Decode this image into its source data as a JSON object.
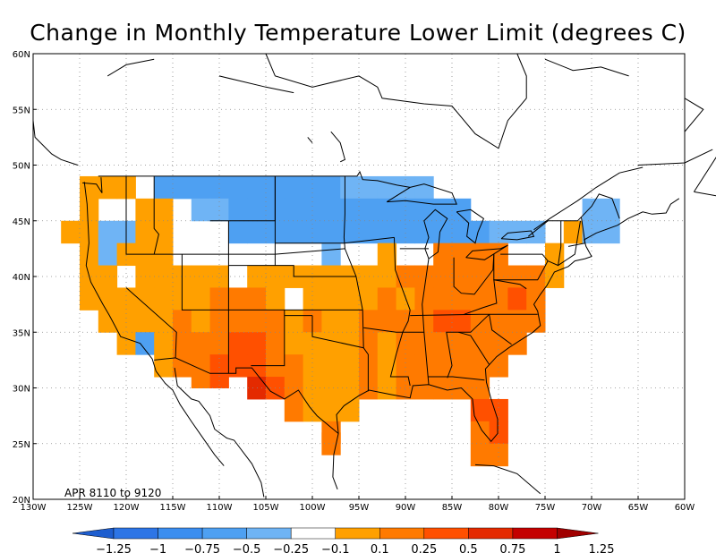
{
  "title": "Change in Monthly Temperature Lower Limit (degrees C)",
  "period_label": "APR 8110 to 9120",
  "lat_labels": [
    "60N",
    "55N",
    "50N",
    "45N",
    "40N",
    "35N",
    "30N",
    "25N",
    "20N"
  ],
  "lon_labels": [
    "130W",
    "125W",
    "120W",
    "115W",
    "110W",
    "105W",
    "100W",
    "95W",
    "90W",
    "85W",
    "80W",
    "75W",
    "70W",
    "65W",
    "60W"
  ],
  "colorbar": {
    "labels": [
      "-1.25",
      "-1",
      "-0.75",
      "-0.5",
      "-0.25",
      "-0.1",
      "0.1",
      "0.25",
      "0.5",
      "0.75",
      "1",
      "1.25"
    ],
    "colors": [
      "#1e5ecf",
      "#2d75e6",
      "#3b8ef0",
      "#4ea0f2",
      "#6fb4f5",
      "#ffffff",
      "#ffa000",
      "#ff7a00",
      "#ff5000",
      "#e42a00",
      "#c40000",
      "#a00000"
    ]
  },
  "map_data": {
    "lon_range": [
      -130,
      -60
    ],
    "lat_range": [
      20,
      60
    ],
    "cells": [
      {
        "lon": -124,
        "lat": 48,
        "level": "0.1"
      },
      {
        "lon": -122,
        "lat": 48,
        "level": "0.1"
      },
      {
        "lon": -120,
        "lat": 48,
        "level": "0.1"
      },
      {
        "lon": -116,
        "lat": 48,
        "level": "-0.5"
      },
      {
        "lon": -114,
        "lat": 48,
        "level": "-0.5"
      },
      {
        "lon": -112,
        "lat": 48,
        "level": "-0.5"
      },
      {
        "lon": -110,
        "lat": 48,
        "level": "-0.5"
      },
      {
        "lon": -108,
        "lat": 48,
        "level": "-0.5"
      },
      {
        "lon": -106,
        "lat": 48,
        "level": "-0.5"
      },
      {
        "lon": -104,
        "lat": 48,
        "level": "-0.5"
      },
      {
        "lon": -102,
        "lat": 48,
        "level": "-0.5"
      },
      {
        "lon": -100,
        "lat": 48,
        "level": "-0.5"
      },
      {
        "lon": -98,
        "lat": 48,
        "level": "-0.5"
      },
      {
        "lon": -96,
        "lat": 48,
        "level": "-0.25"
      },
      {
        "lon": -94,
        "lat": 48,
        "level": "-0.25"
      },
      {
        "lon": -92,
        "lat": 48,
        "level": "-0.25"
      },
      {
        "lon": -90,
        "lat": 48,
        "level": "-0.25"
      },
      {
        "lon": -88,
        "lat": 48,
        "level": "-0.25"
      },
      {
        "lon": -124,
        "lat": 46,
        "level": "0.1"
      },
      {
        "lon": -118,
        "lat": 46,
        "level": "0.1"
      },
      {
        "lon": -116,
        "lat": 46,
        "level": "0.1"
      },
      {
        "lon": -112,
        "lat": 46,
        "level": "-0.25"
      },
      {
        "lon": -110,
        "lat": 46,
        "level": "-0.25"
      },
      {
        "lon": -108,
        "lat": 46,
        "level": "-0.5"
      },
      {
        "lon": -106,
        "lat": 46,
        "level": "-0.5"
      },
      {
        "lon": -104,
        "lat": 46,
        "level": "-0.5"
      },
      {
        "lon": -102,
        "lat": 46,
        "level": "-0.5"
      },
      {
        "lon": -100,
        "lat": 46,
        "level": "-0.5"
      },
      {
        "lon": -98,
        "lat": 46,
        "level": "-0.5"
      },
      {
        "lon": -96,
        "lat": 46,
        "level": "-0.5"
      },
      {
        "lon": -94,
        "lat": 46,
        "level": "-0.5"
      },
      {
        "lon": -92,
        "lat": 46,
        "level": "-0.5"
      },
      {
        "lon": -90,
        "lat": 46,
        "level": "-0.5"
      },
      {
        "lon": -88,
        "lat": 46,
        "level": "-0.5"
      },
      {
        "lon": -86,
        "lat": 46,
        "level": "-0.5"
      },
      {
        "lon": -84,
        "lat": 46,
        "level": "-0.5"
      },
      {
        "lon": -70,
        "lat": 46,
        "level": "-0.25"
      },
      {
        "lon": -68,
        "lat": 46,
        "level": "-0.25"
      },
      {
        "lon": -126,
        "lat": 44,
        "level": "0.1"
      },
      {
        "lon": -124,
        "lat": 44,
        "level": "0.1"
      },
      {
        "lon": -122,
        "lat": 44,
        "level": "-0.25"
      },
      {
        "lon": -120,
        "lat": 44,
        "level": "-0.25"
      },
      {
        "lon": -118,
        "lat": 44,
        "level": "0.1"
      },
      {
        "lon": -116,
        "lat": 44,
        "level": "0.1"
      },
      {
        "lon": -108,
        "lat": 44,
        "level": "-0.5"
      },
      {
        "lon": -106,
        "lat": 44,
        "level": "-0.5"
      },
      {
        "lon": -104,
        "lat": 44,
        "level": "-0.5"
      },
      {
        "lon": -102,
        "lat": 44,
        "level": "-0.5"
      },
      {
        "lon": -100,
        "lat": 44,
        "level": "-0.5"
      },
      {
        "lon": -98,
        "lat": 44,
        "level": "-0.5"
      },
      {
        "lon": -96,
        "lat": 44,
        "level": "-0.5"
      },
      {
        "lon": -94,
        "lat": 44,
        "level": "-0.5"
      },
      {
        "lon": -92,
        "lat": 44,
        "level": "-0.5"
      },
      {
        "lon": -90,
        "lat": 44,
        "level": "-0.5"
      },
      {
        "lon": -88,
        "lat": 44,
        "level": "-0.5"
      },
      {
        "lon": -86,
        "lat": 44,
        "level": "-0.5"
      },
      {
        "lon": -84,
        "lat": 44,
        "level": "-0.5"
      },
      {
        "lon": -82,
        "lat": 44,
        "level": "-0.5"
      },
      {
        "lon": -80,
        "lat": 44,
        "level": "-0.25"
      },
      {
        "lon": -78,
        "lat": 44,
        "level": "-0.25"
      },
      {
        "lon": -76,
        "lat": 44,
        "level": "-0.25"
      },
      {
        "lon": -72,
        "lat": 44,
        "level": "0.1"
      },
      {
        "lon": -70,
        "lat": 44,
        "level": "-0.25"
      },
      {
        "lon": -68,
        "lat": 44,
        "level": "-0.25"
      },
      {
        "lon": -124,
        "lat": 42,
        "level": "0.1"
      },
      {
        "lon": -122,
        "lat": 42,
        "level": "-0.25"
      },
      {
        "lon": -120,
        "lat": 42,
        "level": "0.1"
      },
      {
        "lon": -118,
        "lat": 42,
        "level": "0.1"
      },
      {
        "lon": -116,
        "lat": 42,
        "level": "0.1"
      },
      {
        "lon": -98,
        "lat": 42,
        "level": "-0.25"
      },
      {
        "lon": -92,
        "lat": 42,
        "level": "0.1"
      },
      {
        "lon": -86,
        "lat": 42,
        "level": "0.25"
      },
      {
        "lon": -84,
        "lat": 42,
        "level": "0.25"
      },
      {
        "lon": -82,
        "lat": 42,
        "level": "0.25"
      },
      {
        "lon": -80,
        "lat": 42,
        "level": "0.25"
      },
      {
        "lon": -74,
        "lat": 42,
        "level": "0.1"
      },
      {
        "lon": -124,
        "lat": 40,
        "level": "0.1"
      },
      {
        "lon": -122,
        "lat": 40,
        "level": "0.1"
      },
      {
        "lon": -118,
        "lat": 40,
        "level": "0.1"
      },
      {
        "lon": -116,
        "lat": 40,
        "level": "0.1"
      },
      {
        "lon": -114,
        "lat": 40,
        "level": "0.1"
      },
      {
        "lon": -112,
        "lat": 40,
        "level": "0.1"
      },
      {
        "lon": -110,
        "lat": 40,
        "level": "0.1"
      },
      {
        "lon": -106,
        "lat": 40,
        "level": "0.1"
      },
      {
        "lon": -104,
        "lat": 40,
        "level": "0.1"
      },
      {
        "lon": -102,
        "lat": 40,
        "level": "0.1"
      },
      {
        "lon": -100,
        "lat": 40,
        "level": "0.1"
      },
      {
        "lon": -98,
        "lat": 40,
        "level": "0.1"
      },
      {
        "lon": -96,
        "lat": 40,
        "level": "0.1"
      },
      {
        "lon": -94,
        "lat": 40,
        "level": "0.1"
      },
      {
        "lon": -92,
        "lat": 40,
        "level": "0.1"
      },
      {
        "lon": -90,
        "lat": 40,
        "level": "0.25"
      },
      {
        "lon": -88,
        "lat": 40,
        "level": "0.25"
      },
      {
        "lon": -86,
        "lat": 40,
        "level": "0.25"
      },
      {
        "lon": -84,
        "lat": 40,
        "level": "0.25"
      },
      {
        "lon": -82,
        "lat": 40,
        "level": "0.25"
      },
      {
        "lon": -80,
        "lat": 40,
        "level": "0.25"
      },
      {
        "lon": -78,
        "lat": 40,
        "level": "0.25"
      },
      {
        "lon": -76,
        "lat": 40,
        "level": "0.25"
      },
      {
        "lon": -74,
        "lat": 40,
        "level": "0.1"
      },
      {
        "lon": -124,
        "lat": 38,
        "level": "0.1"
      },
      {
        "lon": -122,
        "lat": 38,
        "level": "0.1"
      },
      {
        "lon": -120,
        "lat": 38,
        "level": "0.1"
      },
      {
        "lon": -118,
        "lat": 38,
        "level": "0.1"
      },
      {
        "lon": -116,
        "lat": 38,
        "level": "0.1"
      },
      {
        "lon": -114,
        "lat": 38,
        "level": "0.1"
      },
      {
        "lon": -112,
        "lat": 38,
        "level": "0.1"
      },
      {
        "lon": -110,
        "lat": 38,
        "level": "0.25"
      },
      {
        "lon": -108,
        "lat": 38,
        "level": "0.25"
      },
      {
        "lon": -106,
        "lat": 38,
        "level": "0.25"
      },
      {
        "lon": -104,
        "lat": 38,
        "level": "0.1"
      },
      {
        "lon": -100,
        "lat": 38,
        "level": "0.1"
      },
      {
        "lon": -98,
        "lat": 38,
        "level": "0.1"
      },
      {
        "lon": -96,
        "lat": 38,
        "level": "0.1"
      },
      {
        "lon": -94,
        "lat": 38,
        "level": "0.1"
      },
      {
        "lon": -92,
        "lat": 38,
        "level": "0.25"
      },
      {
        "lon": -90,
        "lat": 38,
        "level": "0.1"
      },
      {
        "lon": -88,
        "lat": 38,
        "level": "0.25"
      },
      {
        "lon": -86,
        "lat": 38,
        "level": "0.25"
      },
      {
        "lon": -84,
        "lat": 38,
        "level": "0.25"
      },
      {
        "lon": -82,
        "lat": 38,
        "level": "0.25"
      },
      {
        "lon": -80,
        "lat": 38,
        "level": "0.25"
      },
      {
        "lon": -78,
        "lat": 38,
        "level": "0.5"
      },
      {
        "lon": -76,
        "lat": 38,
        "level": "0.25"
      },
      {
        "lon": -122,
        "lat": 36,
        "level": "0.1"
      },
      {
        "lon": -120,
        "lat": 36,
        "level": "0.1"
      },
      {
        "lon": -118,
        "lat": 36,
        "level": "0.1"
      },
      {
        "lon": -116,
        "lat": 36,
        "level": "0.1"
      },
      {
        "lon": -114,
        "lat": 36,
        "level": "0.25"
      },
      {
        "lon": -112,
        "lat": 36,
        "level": "0.1"
      },
      {
        "lon": -110,
        "lat": 36,
        "level": "0.25"
      },
      {
        "lon": -108,
        "lat": 36,
        "level": "0.25"
      },
      {
        "lon": -106,
        "lat": 36,
        "level": "0.25"
      },
      {
        "lon": -104,
        "lat": 36,
        "level": "0.25"
      },
      {
        "lon": -102,
        "lat": 36,
        "level": "0.1"
      },
      {
        "lon": -100,
        "lat": 36,
        "level": "0.25"
      },
      {
        "lon": -98,
        "lat": 36,
        "level": "0.1"
      },
      {
        "lon": -96,
        "lat": 36,
        "level": "0.1"
      },
      {
        "lon": -94,
        "lat": 36,
        "level": "0.25"
      },
      {
        "lon": -92,
        "lat": 36,
        "level": "0.25"
      },
      {
        "lon": -90,
        "lat": 36,
        "level": "0.25"
      },
      {
        "lon": -88,
        "lat": 36,
        "level": "0.25"
      },
      {
        "lon": -86,
        "lat": 36,
        "level": "0.5"
      },
      {
        "lon": -84,
        "lat": 36,
        "level": "0.5"
      },
      {
        "lon": -82,
        "lat": 36,
        "level": "0.25"
      },
      {
        "lon": -80,
        "lat": 36,
        "level": "0.25"
      },
      {
        "lon": -78,
        "lat": 36,
        "level": "0.25"
      },
      {
        "lon": -76,
        "lat": 36,
        "level": "0.25"
      },
      {
        "lon": -120,
        "lat": 34,
        "level": "0.1"
      },
      {
        "lon": -118,
        "lat": 34,
        "level": "-0.5"
      },
      {
        "lon": -116,
        "lat": 34,
        "level": "0.1"
      },
      {
        "lon": -114,
        "lat": 34,
        "level": "0.25"
      },
      {
        "lon": -112,
        "lat": 34,
        "level": "0.25"
      },
      {
        "lon": -110,
        "lat": 34,
        "level": "0.25"
      },
      {
        "lon": -108,
        "lat": 34,
        "level": "0.5"
      },
      {
        "lon": -106,
        "lat": 34,
        "level": "0.5"
      },
      {
        "lon": -104,
        "lat": 34,
        "level": "0.25"
      },
      {
        "lon": -102,
        "lat": 34,
        "level": "0.1"
      },
      {
        "lon": -100,
        "lat": 34,
        "level": "0.1"
      },
      {
        "lon": -98,
        "lat": 34,
        "level": "0.1"
      },
      {
        "lon": -96,
        "lat": 34,
        "level": "0.1"
      },
      {
        "lon": -94,
        "lat": 34,
        "level": "0.25"
      },
      {
        "lon": -92,
        "lat": 34,
        "level": "0.1"
      },
      {
        "lon": -90,
        "lat": 34,
        "level": "0.25"
      },
      {
        "lon": -88,
        "lat": 34,
        "level": "0.25"
      },
      {
        "lon": -86,
        "lat": 34,
        "level": "0.25"
      },
      {
        "lon": -84,
        "lat": 34,
        "level": "0.25"
      },
      {
        "lon": -82,
        "lat": 34,
        "level": "0.25"
      },
      {
        "lon": -80,
        "lat": 34,
        "level": "0.25"
      },
      {
        "lon": -78,
        "lat": 34,
        "level": "0.25"
      },
      {
        "lon": -116,
        "lat": 32,
        "level": "0.1"
      },
      {
        "lon": -114,
        "lat": 32,
        "level": "0.25"
      },
      {
        "lon": -112,
        "lat": 32,
        "level": "0.25"
      },
      {
        "lon": -110,
        "lat": 32,
        "level": "0.5"
      },
      {
        "lon": -108,
        "lat": 32,
        "level": "0.5"
      },
      {
        "lon": -106,
        "lat": 32,
        "level": "0.5"
      },
      {
        "lon": -104,
        "lat": 32,
        "level": "0.25"
      },
      {
        "lon": -102,
        "lat": 32,
        "level": "0.25"
      },
      {
        "lon": -100,
        "lat": 32,
        "level": "0.1"
      },
      {
        "lon": -98,
        "lat": 32,
        "level": "0.1"
      },
      {
        "lon": -96,
        "lat": 32,
        "level": "0.1"
      },
      {
        "lon": -94,
        "lat": 32,
        "level": "0.25"
      },
      {
        "lon": -92,
        "lat": 32,
        "level": "0.1"
      },
      {
        "lon": -90,
        "lat": 32,
        "level": "0.25"
      },
      {
        "lon": -88,
        "lat": 32,
        "level": "0.25"
      },
      {
        "lon": -86,
        "lat": 32,
        "level": "0.25"
      },
      {
        "lon": -84,
        "lat": 32,
        "level": "0.25"
      },
      {
        "lon": -82,
        "lat": 32,
        "level": "0.25"
      },
      {
        "lon": -80,
        "lat": 32,
        "level": "0.25"
      },
      {
        "lon": -112,
        "lat": 31,
        "level": "0.25"
      },
      {
        "lon": -110,
        "lat": 31,
        "level": "0.5"
      },
      {
        "lon": -106,
        "lat": 30,
        "level": "0.75"
      },
      {
        "lon": -104,
        "lat": 30,
        "level": "0.5"
      },
      {
        "lon": -102,
        "lat": 30,
        "level": "0.25"
      },
      {
        "lon": -100,
        "lat": 30,
        "level": "0.1"
      },
      {
        "lon": -98,
        "lat": 30,
        "level": "0.1"
      },
      {
        "lon": -96,
        "lat": 30,
        "level": "0.1"
      },
      {
        "lon": -94,
        "lat": 30,
        "level": "0.25"
      },
      {
        "lon": -92,
        "lat": 30,
        "level": "0.1"
      },
      {
        "lon": -90,
        "lat": 30,
        "level": "0.25"
      },
      {
        "lon": -88,
        "lat": 30,
        "level": "0.25"
      },
      {
        "lon": -86,
        "lat": 30,
        "level": "0.25"
      },
      {
        "lon": -84,
        "lat": 30,
        "level": "0.25"
      },
      {
        "lon": -82,
        "lat": 30,
        "level": "0.25"
      },
      {
        "lon": -102,
        "lat": 28,
        "level": "0.25"
      },
      {
        "lon": -100,
        "lat": 28,
        "level": "0.1"
      },
      {
        "lon": -98,
        "lat": 28,
        "level": "0.1"
      },
      {
        "lon": -96,
        "lat": 28,
        "level": "0.1"
      },
      {
        "lon": -82,
        "lat": 28,
        "level": "0.5"
      },
      {
        "lon": -80,
        "lat": 28,
        "level": "0.5"
      },
      {
        "lon": -98,
        "lat": 26,
        "level": "0.25"
      },
      {
        "lon": -82,
        "lat": 26,
        "level": "0.25"
      },
      {
        "lon": -80,
        "lat": 26,
        "level": "0.5"
      },
      {
        "lon": -98,
        "lat": 25,
        "level": "0.25"
      },
      {
        "lon": -82,
        "lat": 24,
        "level": "0.25"
      },
      {
        "lon": -80,
        "lat": 24,
        "level": "0.25"
      }
    ]
  }
}
